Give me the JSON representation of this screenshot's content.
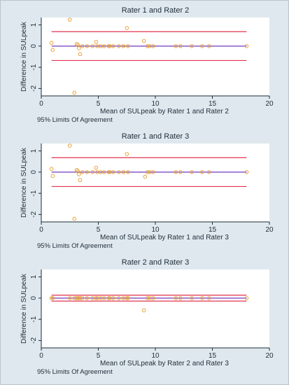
{
  "chart_data": [
    {
      "type": "scatter",
      "title": "Rater 1 and Rater 2",
      "xlabel": "Mean of SULpeak by Rater 1 and Rater 2",
      "ylabel": "Difference in SULpeak",
      "note": "95% Limits Of Agreement",
      "xlim": [
        0,
        20
      ],
      "ylim": [
        -2.35,
        1.35
      ],
      "x_ticks": [
        0,
        5,
        10,
        15,
        20
      ],
      "y_ticks": [
        -2,
        -1,
        0,
        1
      ],
      "grid": false,
      "mean_line": 0.0,
      "limits_of_agreement": [
        -0.68,
        0.68
      ],
      "points_x": [
        0.9,
        1.0,
        2.5,
        2.9,
        3.1,
        3.2,
        3.3,
        3.4,
        3.6,
        4.0,
        4.5,
        4.8,
        4.9,
        5.2,
        5.5,
        5.9,
        6.0,
        6.3,
        6.8,
        7.2,
        7.5,
        7.6,
        9.0,
        9.3,
        9.5,
        9.8,
        11.8,
        12.2,
        13.2,
        14.1,
        14.7,
        18.0
      ],
      "points_y": [
        0.15,
        -0.18,
        1.25,
        -2.2,
        0.1,
        0.05,
        -0.1,
        -0.38,
        0.0,
        0.0,
        0.0,
        0.2,
        0.0,
        0.0,
        0.0,
        0.0,
        0.0,
        0.0,
        0.0,
        0.0,
        0.85,
        0.0,
        0.25,
        0.0,
        0.0,
        0.0,
        0.0,
        0.0,
        0.0,
        0.0,
        0.0,
        0.0
      ]
    },
    {
      "type": "scatter",
      "title": "Rater 1 and Rater 3",
      "xlabel": "Mean of SULpeak by Rater 1 and Rater 3",
      "ylabel": "Difference in SULpeak",
      "note": "95% Limits Of Agreement",
      "xlim": [
        0,
        20
      ],
      "ylim": [
        -2.35,
        1.35
      ],
      "x_ticks": [
        0,
        5,
        10,
        15,
        20
      ],
      "y_ticks": [
        -2,
        -1,
        0,
        1
      ],
      "grid": false,
      "mean_line": 0.0,
      "limits_of_agreement": [
        -0.68,
        0.68
      ],
      "points_x": [
        0.9,
        1.0,
        2.5,
        2.9,
        3.1,
        3.2,
        3.3,
        3.4,
        3.6,
        4.0,
        4.5,
        4.8,
        4.9,
        5.2,
        5.5,
        5.9,
        6.0,
        6.3,
        6.8,
        7.2,
        7.5,
        7.6,
        9.1,
        9.3,
        9.5,
        9.8,
        11.8,
        12.2,
        13.2,
        14.1,
        14.7,
        18.0
      ],
      "points_y": [
        0.15,
        -0.18,
        1.25,
        -2.2,
        0.1,
        0.05,
        -0.1,
        -0.38,
        0.0,
        0.0,
        0.0,
        0.2,
        0.0,
        0.0,
        0.0,
        0.0,
        0.0,
        0.0,
        0.0,
        0.0,
        0.85,
        0.0,
        -0.22,
        0.0,
        0.0,
        0.0,
        0.0,
        0.0,
        0.0,
        0.0,
        0.0,
        0.0
      ]
    },
    {
      "type": "scatter",
      "title": "Rater 2 and Rater 3",
      "xlabel": "Mean of SULpeak by Rater 2 and Rater 3",
      "ylabel": "Difference in SULpeak",
      "note": "95% Limits Of Agreement",
      "xlim": [
        0,
        20
      ],
      "ylim": [
        -2.35,
        1.35
      ],
      "x_ticks": [
        0,
        5,
        10,
        15,
        20
      ],
      "y_ticks": [
        -2,
        -1,
        0,
        1
      ],
      "grid": false,
      "mean_line": 0.0,
      "limits_of_agreement": [
        -0.14,
        0.14
      ],
      "points_x": [
        0.9,
        1.0,
        2.5,
        2.9,
        3.1,
        3.2,
        3.3,
        3.4,
        3.6,
        4.0,
        4.5,
        4.8,
        4.9,
        5.2,
        5.5,
        5.9,
        6.0,
        6.3,
        6.8,
        7.2,
        7.5,
        7.6,
        9.0,
        9.3,
        9.5,
        9.8,
        11.8,
        12.2,
        13.2,
        14.1,
        14.7,
        18.0
      ],
      "points_y": [
        0.0,
        0.0,
        0.0,
        0.0,
        0.0,
        0.0,
        0.0,
        0.0,
        0.0,
        0.0,
        0.0,
        0.0,
        0.0,
        0.0,
        0.0,
        0.0,
        0.0,
        0.0,
        0.0,
        0.0,
        0.0,
        0.0,
        -0.58,
        0.0,
        0.0,
        0.0,
        0.0,
        0.0,
        0.0,
        0.0,
        0.0,
        0.0
      ]
    }
  ],
  "colors": {
    "background": "#dfe8ee",
    "plot_area": "#ffffff",
    "points": "#e8a33a",
    "limit_lines": "#e0344f",
    "mean_line": "#8a58c9",
    "axis": "#1e2c3a"
  }
}
